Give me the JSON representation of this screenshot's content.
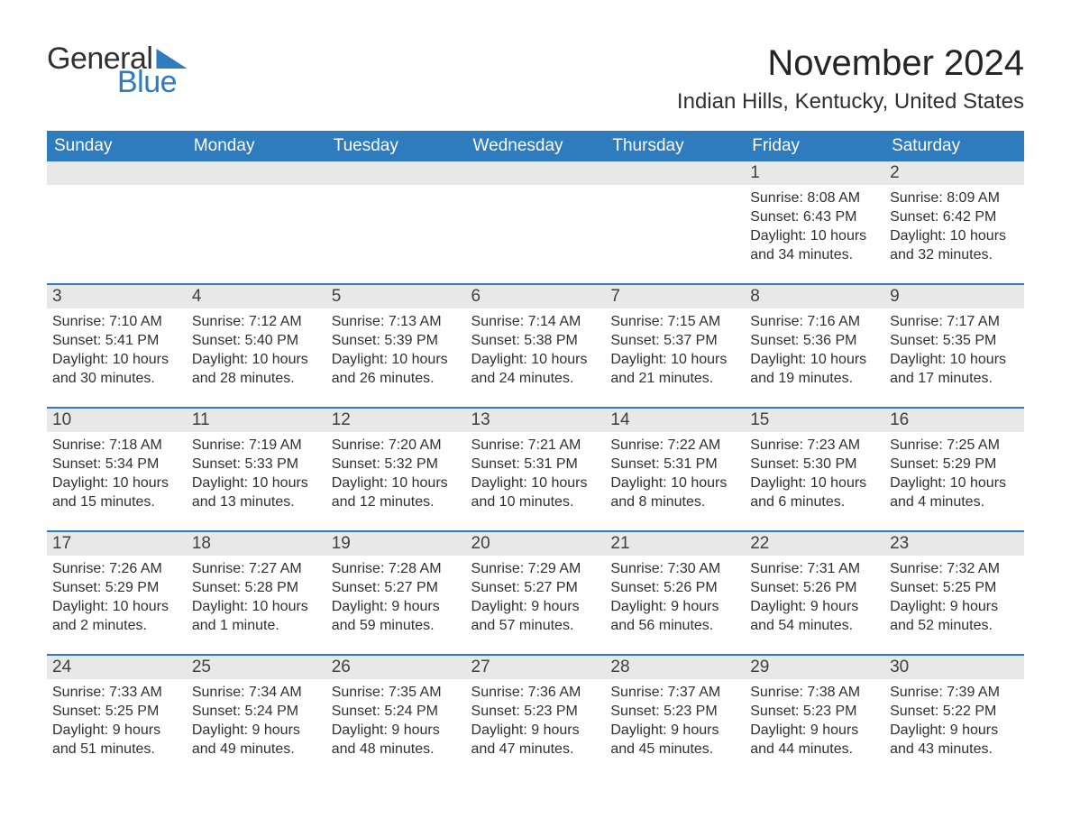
{
  "brand": {
    "text_general": "General",
    "text_blue": "Blue"
  },
  "title": "November 2024",
  "location": "Indian Hills, Kentucky, United States",
  "columns": [
    "Sunday",
    "Monday",
    "Tuesday",
    "Wednesday",
    "Thursday",
    "Friday",
    "Saturday"
  ],
  "labels": {
    "sunrise": "Sunrise:",
    "sunset": "Sunset:",
    "daylight": "Daylight:"
  },
  "colors": {
    "accent_blue": "#2e7bbd",
    "header_gray": "#e8e8e8",
    "text": "#303030",
    "background": "#ffffff",
    "border_blue": "#2e7bbd"
  },
  "typography": {
    "title_fontsize_pt": 30,
    "location_fontsize_pt": 18,
    "dayheader_fontsize_pt": 14,
    "body_fontsize_pt": 12
  },
  "calendar": {
    "first_weekday_index": 5,
    "weeks": [
      [
        null,
        null,
        null,
        null,
        null,
        {
          "n": "1",
          "sunrise": "8:08 AM",
          "sunset": "6:43 PM",
          "daylight": "10 hours and 34 minutes."
        },
        {
          "n": "2",
          "sunrise": "8:09 AM",
          "sunset": "6:42 PM",
          "daylight": "10 hours and 32 minutes."
        }
      ],
      [
        {
          "n": "3",
          "sunrise": "7:10 AM",
          "sunset": "5:41 PM",
          "daylight": "10 hours and 30 minutes."
        },
        {
          "n": "4",
          "sunrise": "7:12 AM",
          "sunset": "5:40 PM",
          "daylight": "10 hours and 28 minutes."
        },
        {
          "n": "5",
          "sunrise": "7:13 AM",
          "sunset": "5:39 PM",
          "daylight": "10 hours and 26 minutes."
        },
        {
          "n": "6",
          "sunrise": "7:14 AM",
          "sunset": "5:38 PM",
          "daylight": "10 hours and 24 minutes."
        },
        {
          "n": "7",
          "sunrise": "7:15 AM",
          "sunset": "5:37 PM",
          "daylight": "10 hours and 21 minutes."
        },
        {
          "n": "8",
          "sunrise": "7:16 AM",
          "sunset": "5:36 PM",
          "daylight": "10 hours and 19 minutes."
        },
        {
          "n": "9",
          "sunrise": "7:17 AM",
          "sunset": "5:35 PM",
          "daylight": "10 hours and 17 minutes."
        }
      ],
      [
        {
          "n": "10",
          "sunrise": "7:18 AM",
          "sunset": "5:34 PM",
          "daylight": "10 hours and 15 minutes."
        },
        {
          "n": "11",
          "sunrise": "7:19 AM",
          "sunset": "5:33 PM",
          "daylight": "10 hours and 13 minutes."
        },
        {
          "n": "12",
          "sunrise": "7:20 AM",
          "sunset": "5:32 PM",
          "daylight": "10 hours and 12 minutes."
        },
        {
          "n": "13",
          "sunrise": "7:21 AM",
          "sunset": "5:31 PM",
          "daylight": "10 hours and 10 minutes."
        },
        {
          "n": "14",
          "sunrise": "7:22 AM",
          "sunset": "5:31 PM",
          "daylight": "10 hours and 8 minutes."
        },
        {
          "n": "15",
          "sunrise": "7:23 AM",
          "sunset": "5:30 PM",
          "daylight": "10 hours and 6 minutes."
        },
        {
          "n": "16",
          "sunrise": "7:25 AM",
          "sunset": "5:29 PM",
          "daylight": "10 hours and 4 minutes."
        }
      ],
      [
        {
          "n": "17",
          "sunrise": "7:26 AM",
          "sunset": "5:29 PM",
          "daylight": "10 hours and 2 minutes."
        },
        {
          "n": "18",
          "sunrise": "7:27 AM",
          "sunset": "5:28 PM",
          "daylight": "10 hours and 1 minute."
        },
        {
          "n": "19",
          "sunrise": "7:28 AM",
          "sunset": "5:27 PM",
          "daylight": "9 hours and 59 minutes."
        },
        {
          "n": "20",
          "sunrise": "7:29 AM",
          "sunset": "5:27 PM",
          "daylight": "9 hours and 57 minutes."
        },
        {
          "n": "21",
          "sunrise": "7:30 AM",
          "sunset": "5:26 PM",
          "daylight": "9 hours and 56 minutes."
        },
        {
          "n": "22",
          "sunrise": "7:31 AM",
          "sunset": "5:26 PM",
          "daylight": "9 hours and 54 minutes."
        },
        {
          "n": "23",
          "sunrise": "7:32 AM",
          "sunset": "5:25 PM",
          "daylight": "9 hours and 52 minutes."
        }
      ],
      [
        {
          "n": "24",
          "sunrise": "7:33 AM",
          "sunset": "5:25 PM",
          "daylight": "9 hours and 51 minutes."
        },
        {
          "n": "25",
          "sunrise": "7:34 AM",
          "sunset": "5:24 PM",
          "daylight": "9 hours and 49 minutes."
        },
        {
          "n": "26",
          "sunrise": "7:35 AM",
          "sunset": "5:24 PM",
          "daylight": "9 hours and 48 minutes."
        },
        {
          "n": "27",
          "sunrise": "7:36 AM",
          "sunset": "5:23 PM",
          "daylight": "9 hours and 47 minutes."
        },
        {
          "n": "28",
          "sunrise": "7:37 AM",
          "sunset": "5:23 PM",
          "daylight": "9 hours and 45 minutes."
        },
        {
          "n": "29",
          "sunrise": "7:38 AM",
          "sunset": "5:23 PM",
          "daylight": "9 hours and 44 minutes."
        },
        {
          "n": "30",
          "sunrise": "7:39 AM",
          "sunset": "5:22 PM",
          "daylight": "9 hours and 43 minutes."
        }
      ]
    ]
  }
}
